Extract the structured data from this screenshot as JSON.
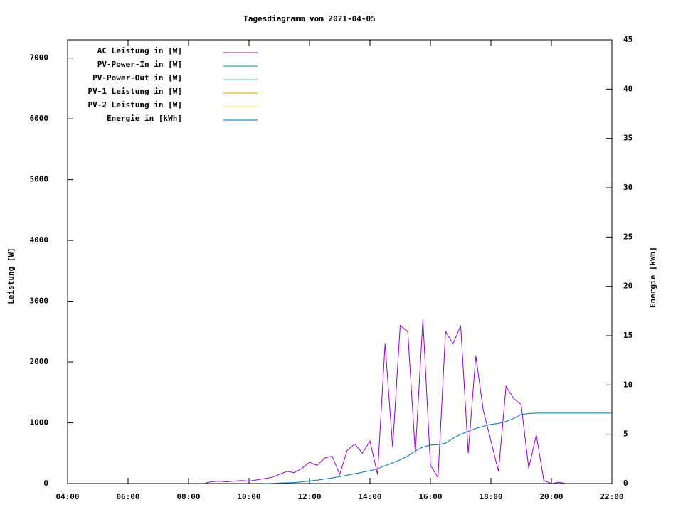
{
  "chart_data": {
    "type": "line",
    "title": "Tagesdiagramm vom 2021-04-05",
    "y_label": "Leistung [W]",
    "y2_label": "Energie [kWh]",
    "xlim": [
      4,
      22
    ],
    "xticks": [
      {
        "value": 4,
        "label": "04:00"
      },
      {
        "value": 6,
        "label": "06:00"
      },
      {
        "value": 8,
        "label": "08:00"
      },
      {
        "value": 10,
        "label": "10:00"
      },
      {
        "value": 12,
        "label": "12:00"
      },
      {
        "value": 14,
        "label": "14:00"
      },
      {
        "value": 16,
        "label": "16:00"
      },
      {
        "value": 18,
        "label": "18:00"
      },
      {
        "value": 20,
        "label": "20:00"
      },
      {
        "value": 22,
        "label": "22:00"
      }
    ],
    "ylim": [
      0,
      7300
    ],
    "yticks": [
      0,
      1000,
      2000,
      3000,
      4000,
      5000,
      6000,
      7000
    ],
    "y2lim": [
      0,
      45
    ],
    "y2ticks": [
      0,
      5,
      10,
      15,
      20,
      25,
      30,
      35,
      40,
      45
    ],
    "legend": "top-left",
    "x": [
      8.5,
      8.75,
      9,
      9.25,
      9.5,
      9.75,
      10,
      10.25,
      10.5,
      10.75,
      11,
      11.25,
      11.5,
      11.75,
      12,
      12.25,
      12.5,
      12.75,
      13,
      13.25,
      13.5,
      13.75,
      14,
      14.25,
      14.5,
      14.75,
      15,
      15.25,
      15.5,
      15.75,
      16,
      16.25,
      16.5,
      16.75,
      17,
      17.25,
      17.5,
      17.75,
      18,
      18.25,
      18.5,
      18.75,
      19,
      19.25,
      19.5,
      19.75,
      20,
      20.25,
      20.5,
      20.75,
      21,
      21.25,
      21.5,
      21.75,
      22
    ],
    "series": [
      {
        "name": "AC Leistung in [W]",
        "color": "#9400d3",
        "values": [
          0,
          30,
          40,
          30,
          40,
          50,
          40,
          60,
          80,
          100,
          150,
          200,
          180,
          250,
          350,
          300,
          420,
          450,
          150,
          550,
          650,
          500,
          700,
          150,
          2300,
          600,
          2600,
          2500,
          500,
          2700,
          300,
          100,
          2500,
          2300,
          2600,
          500,
          2100,
          1200,
          700,
          200,
          1600,
          1400,
          1300,
          250,
          800,
          50,
          0,
          20,
          0,
          null,
          null,
          null,
          null,
          null,
          null
        ]
      },
      {
        "name": "PV-Power-In in [W]",
        "color": "#009e73",
        "values": [
          null,
          null,
          null,
          null,
          null,
          null,
          null,
          null,
          null,
          null,
          null,
          null,
          null,
          null,
          null,
          null,
          null,
          null,
          null,
          null,
          null,
          null,
          null,
          null,
          null,
          null,
          null,
          null,
          null,
          null,
          null,
          null,
          null,
          null,
          null,
          null,
          null,
          null,
          null,
          null,
          null,
          null,
          null,
          null,
          null,
          null,
          null,
          null,
          null,
          null,
          null,
          null,
          null,
          null,
          null
        ]
      },
      {
        "name": "PV-Power-Out in [W]",
        "color": "#56b4e9",
        "values": [
          null,
          null,
          null,
          null,
          null,
          null,
          null,
          null,
          null,
          null,
          null,
          null,
          null,
          null,
          null,
          null,
          null,
          null,
          null,
          null,
          null,
          null,
          null,
          null,
          null,
          null,
          null,
          null,
          null,
          null,
          null,
          null,
          null,
          null,
          null,
          null,
          null,
          null,
          null,
          null,
          null,
          null,
          null,
          null,
          null,
          null,
          null,
          null,
          null,
          null,
          null,
          null,
          null,
          null,
          null
        ]
      },
      {
        "name": "PV-1 Leistung in [W]",
        "color": "#e69f00",
        "values": [
          null,
          null,
          null,
          null,
          null,
          null,
          null,
          null,
          null,
          null,
          null,
          null,
          null,
          null,
          null,
          null,
          null,
          null,
          null,
          null,
          null,
          null,
          null,
          null,
          null,
          null,
          null,
          null,
          null,
          null,
          null,
          null,
          null,
          null,
          null,
          null,
          null,
          null,
          null,
          null,
          null,
          null,
          null,
          null,
          null,
          null,
          null,
          null,
          null,
          null,
          null,
          null,
          null,
          null,
          null
        ]
      },
      {
        "name": "PV-2 Leistung in [W]",
        "color": "#f0e442",
        "values": [
          null,
          null,
          null,
          null,
          null,
          null,
          null,
          null,
          null,
          null,
          null,
          null,
          null,
          null,
          null,
          null,
          null,
          null,
          null,
          null,
          null,
          null,
          null,
          null,
          null,
          null,
          null,
          null,
          null,
          null,
          null,
          null,
          null,
          null,
          null,
          null,
          null,
          null,
          null,
          null,
          null,
          null,
          null,
          null,
          null,
          null,
          null,
          null,
          null,
          null,
          null,
          null,
          null,
          null,
          null
        ]
      },
      {
        "name": "Energie in [kWh]",
        "color": "#0072b2",
        "axis": "y2",
        "values": [
          null,
          null,
          null,
          null,
          null,
          null,
          null,
          null,
          0,
          0.02,
          0.05,
          0.07,
          0.1,
          0.17,
          0.25,
          0.35,
          0.45,
          0.57,
          0.7,
          0.85,
          1.0,
          1.15,
          1.3,
          1.5,
          1.8,
          2.1,
          2.4,
          2.8,
          3.3,
          3.7,
          3.9,
          3.95,
          4.1,
          4.6,
          5.0,
          5.3,
          5.6,
          5.8,
          6.0,
          6.1,
          6.3,
          6.6,
          7.0,
          7.1,
          7.15,
          7.15,
          7.15,
          7.15,
          7.15,
          7.15,
          7.15,
          7.15,
          7.15,
          7.15,
          7.15
        ]
      }
    ]
  }
}
